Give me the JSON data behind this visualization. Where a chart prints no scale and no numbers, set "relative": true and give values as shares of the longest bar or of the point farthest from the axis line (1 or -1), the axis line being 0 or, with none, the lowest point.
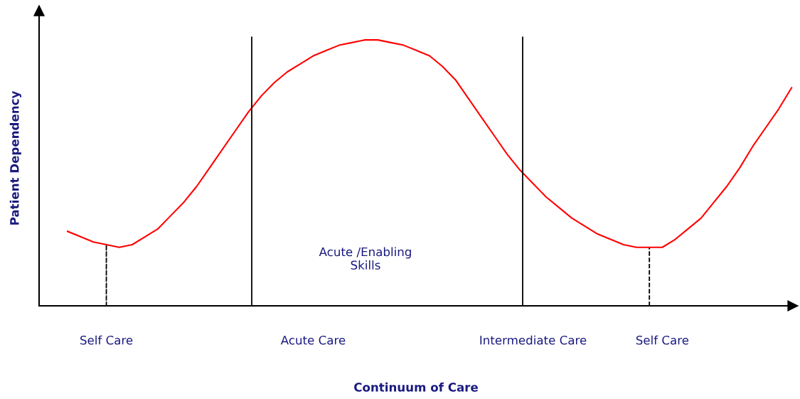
{
  "chart_data": {
    "type": "line",
    "relative": true,
    "xlabel": "Continuum of Care",
    "ylabel": "Patient Dependency",
    "categories": [
      null,
      null,
      null,
      "Self Care",
      null,
      null,
      null,
      null,
      null,
      null,
      null,
      null,
      null,
      null,
      null,
      null,
      null,
      null,
      null,
      "Acute Care",
      null,
      null,
      null,
      null,
      null,
      null,
      null,
      null,
      null,
      null,
      null,
      null,
      null,
      null,
      null,
      null,
      "Intermediate Care",
      null,
      null,
      null,
      null,
      null,
      null,
      null,
      null,
      null,
      "Self Care",
      null,
      null,
      null,
      null,
      null,
      null,
      null,
      null,
      null,
      null
    ],
    "series": [
      {
        "color": "#ff0000",
        "line_style": "solid",
        "values": [
          0.28,
          0.26,
          0.24,
          0.23,
          0.22,
          0.23,
          0.26,
          0.29,
          0.34,
          0.39,
          0.45,
          0.52,
          0.59,
          0.66,
          0.73,
          0.79,
          0.84,
          0.88,
          0.91,
          0.94,
          0.96,
          0.98,
          0.99,
          1.0,
          1.0,
          0.99,
          0.98,
          0.96,
          0.94,
          0.9,
          0.85,
          0.78,
          0.71,
          0.64,
          0.57,
          0.51,
          0.46,
          0.41,
          0.37,
          0.33,
          0.3,
          0.27,
          0.25,
          0.23,
          0.22,
          0.22,
          0.22,
          0.25,
          0.29,
          0.33,
          0.39,
          0.45,
          0.52,
          0.6,
          0.67,
          0.74,
          0.82
        ]
      },
      {
        "type": "bar",
        "color": "#000000",
        "line_style": "dashed",
        "values": [
          null,
          null,
          null,
          0.23,
          null,
          null,
          null,
          null,
          null,
          null,
          null,
          null,
          null,
          null,
          null,
          null,
          null,
          null,
          null,
          null,
          null,
          null,
          null,
          null,
          null,
          null,
          null,
          null,
          null,
          null,
          null,
          null,
          null,
          null,
          null,
          null,
          null,
          null,
          null,
          null,
          null,
          null,
          null,
          null,
          null,
          0.22,
          null,
          null,
          null,
          null,
          null,
          null,
          null,
          null,
          null,
          null,
          null
        ]
      }
    ],
    "annotations": [
      "Acute /Enabling\nSkills"
    ],
    "grid": false
  }
}
